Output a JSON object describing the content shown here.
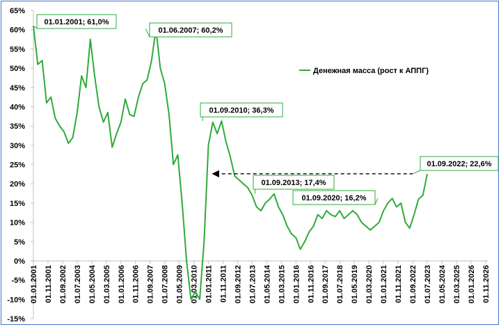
{
  "chart_data": {
    "type": "line",
    "title": "",
    "xlabel": "",
    "ylabel": "",
    "ylim": [
      -15,
      65
    ],
    "y_ticks": [
      "65%",
      "60%",
      "55%",
      "50%",
      "45%",
      "40%",
      "35%",
      "30%",
      "25%",
      "20%",
      "15%",
      "10%",
      "5%",
      "0%",
      "-5%",
      "-10%",
      "-15%"
    ],
    "x_ticks": [
      "01.01.2001",
      "01.11.2001",
      "01.09.2002",
      "01.07.2003",
      "01.05.2004",
      "01.03.2005",
      "01.01.2006",
      "01.11.2006",
      "01.09.2007",
      "01.07.2008",
      "01.05.2009",
      "01.03.2010",
      "01.01.2011",
      "01.11.2011",
      "01.09.2012",
      "01.07.2013",
      "01.05.2014",
      "01.03.2015",
      "01.01.2016",
      "01.11.2016",
      "01.09.2017",
      "01.07.2018",
      "01.05.2019",
      "01.03.2020",
      "01.01.2021",
      "01.11.2021",
      "01.09.2022",
      "01.07.2023",
      "01.05.2024",
      "01.03.2025",
      "01.01.2026",
      "01.11.2026"
    ],
    "grid": false,
    "legend_position": "top-right",
    "series_color": "#2eaa3a",
    "series": [
      {
        "name": "Денежная масса (рост к АППГ)",
        "x_start": "01.01.2001",
        "x_step_months": 3,
        "values": [
          61.0,
          51.0,
          52.0,
          41.0,
          42.5,
          37.0,
          35.0,
          33.5,
          30.5,
          32.0,
          38.5,
          48.0,
          45.0,
          57.5,
          48.0,
          40.0,
          36.0,
          38.5,
          29.5,
          33.0,
          36.0,
          42.0,
          38.0,
          37.5,
          42.5,
          46.0,
          47.0,
          52.0,
          60.2,
          50.0,
          46.0,
          38.0,
          25.0,
          27.5,
          15.0,
          0.0,
          -10.0,
          -8.0,
          -10.0,
          5.0,
          30.0,
          36.0,
          33.0,
          36.3,
          31.0,
          27.0,
          22.0,
          21.0,
          20.0,
          19.0,
          17.0,
          14.0,
          13.0,
          15.0,
          16.0,
          17.4,
          14.0,
          12.0,
          9.0,
          7.0,
          6.0,
          3.0,
          5.0,
          7.5,
          9.0,
          12.0,
          11.0,
          13.0,
          12.0,
          11.5,
          13.0,
          11.0,
          12.0,
          13.0,
          12.0,
          10.0,
          9.0,
          8.0,
          9.0,
          10.0,
          13.0,
          15.0,
          16.2,
          14.0,
          15.0,
          10.0,
          8.5,
          12.0,
          16.0,
          17.0,
          22.6
        ]
      }
    ],
    "annotations": [
      {
        "label": "01.01.2001; 61,0%",
        "x": "01.01.2001",
        "y": 61.0
      },
      {
        "label": "01.06.2007; 60,2%",
        "x": "01.06.2007",
        "y": 60.2
      },
      {
        "label": "01.09.2010; 36,3%",
        "x": "01.09.2010",
        "y": 36.3
      },
      {
        "label": "01.09.2013; 17,4%",
        "x": "01.09.2013",
        "y": 17.4
      },
      {
        "label": "01.09.2020; 16,2%",
        "x": "01.09.2020",
        "y": 16.2
      },
      {
        "label": "01.09.2022; 22,6%",
        "x": "01.09.2022",
        "y": 22.6
      }
    ],
    "reference_arrow": {
      "from": "01.09.2022",
      "to": "01.03.2011",
      "y": 22.6,
      "style": "dashed"
    }
  }
}
